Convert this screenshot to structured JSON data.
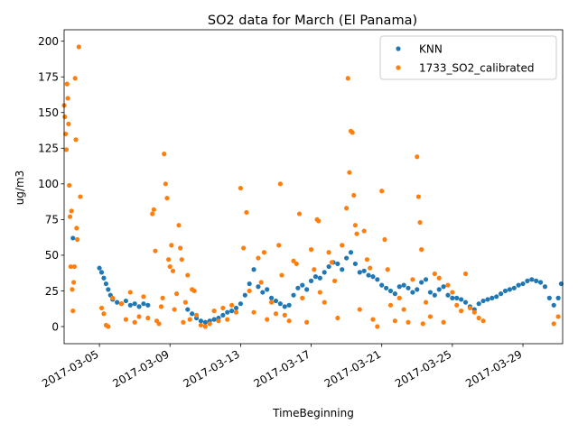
{
  "chart_data": {
    "type": "scatter",
    "title": "SO2 data for March (El Panama)",
    "xlabel": "TimeBeginning",
    "ylabel": "ug/m3",
    "xlim": [
      "2017-03-03 00:00",
      "2017-03-31 06:00"
    ],
    "ylim": [
      -12,
      208
    ],
    "x_ticks": [
      "2017-03-05",
      "2017-03-09",
      "2017-03-13",
      "2017-03-17",
      "2017-03-21",
      "2017-03-25",
      "2017-03-29"
    ],
    "y_ticks": [
      0,
      25,
      50,
      75,
      100,
      125,
      150,
      175,
      200
    ],
    "grid": false,
    "legend_position": "top-right",
    "series": [
      {
        "name": "KNN",
        "color": "#1f77b4",
        "points": [
          [
            "2017-03-03 12:00",
            62
          ],
          [
            "2017-03-05 00:00",
            41
          ],
          [
            "2017-03-05 03:00",
            38
          ],
          [
            "2017-03-05 06:00",
            34
          ],
          [
            "2017-03-05 09:00",
            30
          ],
          [
            "2017-03-05 12:00",
            26
          ],
          [
            "2017-03-05 15:00",
            22
          ],
          [
            "2017-03-05 18:00",
            19
          ],
          [
            "2017-03-06 00:00",
            17
          ],
          [
            "2017-03-06 06:00",
            16
          ],
          [
            "2017-03-06 12:00",
            18
          ],
          [
            "2017-03-06 18:00",
            15
          ],
          [
            "2017-03-07 00:00",
            16
          ],
          [
            "2017-03-07 06:00",
            14
          ],
          [
            "2017-03-07 12:00",
            16
          ],
          [
            "2017-03-07 18:00",
            15
          ],
          [
            "2017-03-10 00:00",
            12
          ],
          [
            "2017-03-10 06:00",
            9
          ],
          [
            "2017-03-10 12:00",
            6
          ],
          [
            "2017-03-10 18:00",
            4
          ],
          [
            "2017-03-11 00:00",
            3
          ],
          [
            "2017-03-11 06:00",
            4
          ],
          [
            "2017-03-11 12:00",
            5
          ],
          [
            "2017-03-11 18:00",
            6
          ],
          [
            "2017-03-12 00:00",
            8
          ],
          [
            "2017-03-12 06:00",
            10
          ],
          [
            "2017-03-12 12:00",
            11
          ],
          [
            "2017-03-12 18:00",
            13
          ],
          [
            "2017-03-13 00:00",
            16
          ],
          [
            "2017-03-13 06:00",
            22
          ],
          [
            "2017-03-13 12:00",
            30
          ],
          [
            "2017-03-13 18:00",
            40
          ],
          [
            "2017-03-14 00:00",
            28
          ],
          [
            "2017-03-14 06:00",
            24
          ],
          [
            "2017-03-14 12:00",
            26
          ],
          [
            "2017-03-14 18:00",
            20
          ],
          [
            "2017-03-15 00:00",
            18
          ],
          [
            "2017-03-15 06:00",
            16
          ],
          [
            "2017-03-15 12:00",
            14
          ],
          [
            "2017-03-15 18:00",
            15
          ],
          [
            "2017-03-16 00:00",
            22
          ],
          [
            "2017-03-16 06:00",
            27
          ],
          [
            "2017-03-16 12:00",
            29
          ],
          [
            "2017-03-16 18:00",
            26
          ],
          [
            "2017-03-17 00:00",
            32
          ],
          [
            "2017-03-17 06:00",
            35
          ],
          [
            "2017-03-17 12:00",
            34
          ],
          [
            "2017-03-17 18:00",
            38
          ],
          [
            "2017-03-18 00:00",
            42
          ],
          [
            "2017-03-18 06:00",
            45
          ],
          [
            "2017-03-18 12:00",
            44
          ],
          [
            "2017-03-18 18:00",
            40
          ],
          [
            "2017-03-19 00:00",
            48
          ],
          [
            "2017-03-19 06:00",
            52
          ],
          [
            "2017-03-19 12:00",
            44
          ],
          [
            "2017-03-19 18:00",
            38
          ],
          [
            "2017-03-20 00:00",
            39
          ],
          [
            "2017-03-20 06:00",
            36
          ],
          [
            "2017-03-20 12:00",
            35
          ],
          [
            "2017-03-20 18:00",
            33
          ],
          [
            "2017-03-21 00:00",
            29
          ],
          [
            "2017-03-21 06:00",
            27
          ],
          [
            "2017-03-21 12:00",
            25
          ],
          [
            "2017-03-21 18:00",
            23
          ],
          [
            "2017-03-22 00:00",
            28
          ],
          [
            "2017-03-22 06:00",
            29
          ],
          [
            "2017-03-22 12:00",
            27
          ],
          [
            "2017-03-22 18:00",
            24
          ],
          [
            "2017-03-23 00:00",
            26
          ],
          [
            "2017-03-23 06:00",
            31
          ],
          [
            "2017-03-23 12:00",
            33
          ],
          [
            "2017-03-23 18:00",
            24
          ],
          [
            "2017-03-24 00:00",
            22
          ],
          [
            "2017-03-24 06:00",
            26
          ],
          [
            "2017-03-24 12:00",
            28
          ],
          [
            "2017-03-24 18:00",
            22
          ],
          [
            "2017-03-25 00:00",
            20
          ],
          [
            "2017-03-25 06:00",
            20
          ],
          [
            "2017-03-25 12:00",
            19
          ],
          [
            "2017-03-25 18:00",
            17
          ],
          [
            "2017-03-26 00:00",
            14
          ],
          [
            "2017-03-26 06:00",
            12
          ],
          [
            "2017-03-26 12:00",
            16
          ],
          [
            "2017-03-26 18:00",
            18
          ],
          [
            "2017-03-27 00:00",
            19
          ],
          [
            "2017-03-27 06:00",
            20
          ],
          [
            "2017-03-27 12:00",
            21
          ],
          [
            "2017-03-27 18:00",
            23
          ],
          [
            "2017-03-28 00:00",
            25
          ],
          [
            "2017-03-28 06:00",
            26
          ],
          [
            "2017-03-28 12:00",
            27
          ],
          [
            "2017-03-28 18:00",
            29
          ],
          [
            "2017-03-29 00:00",
            30
          ],
          [
            "2017-03-29 06:00",
            32
          ],
          [
            "2017-03-29 12:00",
            33
          ],
          [
            "2017-03-29 18:00",
            32
          ],
          [
            "2017-03-30 00:00",
            31
          ],
          [
            "2017-03-30 06:00",
            28
          ],
          [
            "2017-03-30 12:00",
            20
          ],
          [
            "2017-03-30 18:00",
            15
          ],
          [
            "2017-03-31 00:00",
            20
          ],
          [
            "2017-03-31 04:00",
            30
          ]
        ]
      },
      {
        "name": "1733_SO2_calibrated",
        "color": "#ff7f0e",
        "points": [
          [
            "2017-03-03 00:00",
            155
          ],
          [
            "2017-03-03 01:00",
            147
          ],
          [
            "2017-03-03 02:00",
            135
          ],
          [
            "2017-03-03 03:00",
            124
          ],
          [
            "2017-03-03 04:00",
            170
          ],
          [
            "2017-03-03 05:00",
            160
          ],
          [
            "2017-03-03 06:00",
            142
          ],
          [
            "2017-03-03 07:00",
            99
          ],
          [
            "2017-03-03 08:00",
            77
          ],
          [
            "2017-03-03 09:00",
            42
          ],
          [
            "2017-03-03 10:00",
            81
          ],
          [
            "2017-03-03 11:00",
            26
          ],
          [
            "2017-03-03 12:00",
            11
          ],
          [
            "2017-03-03 13:00",
            31
          ],
          [
            "2017-03-03 14:00",
            42
          ],
          [
            "2017-03-03 15:00",
            174
          ],
          [
            "2017-03-03 16:00",
            131
          ],
          [
            "2017-03-03 17:00",
            69
          ],
          [
            "2017-03-03 18:00",
            61
          ],
          [
            "2017-03-03 20:00",
            196
          ],
          [
            "2017-03-03 22:00",
            91
          ],
          [
            "2017-03-05 03:00",
            13
          ],
          [
            "2017-03-05 06:00",
            9
          ],
          [
            "2017-03-05 09:00",
            1
          ],
          [
            "2017-03-05 12:00",
            0
          ],
          [
            "2017-03-05 18:00",
            20
          ],
          [
            "2017-03-06 06:00",
            16
          ],
          [
            "2017-03-06 12:00",
            5
          ],
          [
            "2017-03-06 18:00",
            24
          ],
          [
            "2017-03-07 00:00",
            3
          ],
          [
            "2017-03-07 06:00",
            7
          ],
          [
            "2017-03-07 12:00",
            21
          ],
          [
            "2017-03-07 18:00",
            6
          ],
          [
            "2017-03-08 00:00",
            79
          ],
          [
            "2017-03-08 02:00",
            82
          ],
          [
            "2017-03-08 04:00",
            53
          ],
          [
            "2017-03-08 06:00",
            4
          ],
          [
            "2017-03-08 09:00",
            2
          ],
          [
            "2017-03-08 12:00",
            14
          ],
          [
            "2017-03-08 14:00",
            20
          ],
          [
            "2017-03-08 16:00",
            121
          ],
          [
            "2017-03-08 18:00",
            100
          ],
          [
            "2017-03-08 20:00",
            90
          ],
          [
            "2017-03-08 22:00",
            47
          ],
          [
            "2017-03-09 00:00",
            42
          ],
          [
            "2017-03-09 02:00",
            57
          ],
          [
            "2017-03-09 04:00",
            39
          ],
          [
            "2017-03-09 06:00",
            12
          ],
          [
            "2017-03-09 09:00",
            23
          ],
          [
            "2017-03-09 12:00",
            71
          ],
          [
            "2017-03-09 14:00",
            55
          ],
          [
            "2017-03-09 16:00",
            47
          ],
          [
            "2017-03-09 18:00",
            3
          ],
          [
            "2017-03-09 21:00",
            17
          ],
          [
            "2017-03-10 00:00",
            36
          ],
          [
            "2017-03-10 03:00",
            5
          ],
          [
            "2017-03-10 06:00",
            26
          ],
          [
            "2017-03-10 09:00",
            25
          ],
          [
            "2017-03-10 12:00",
            8
          ],
          [
            "2017-03-10 18:00",
            1
          ],
          [
            "2017-03-11 00:00",
            0
          ],
          [
            "2017-03-11 06:00",
            2
          ],
          [
            "2017-03-11 12:00",
            11
          ],
          [
            "2017-03-11 18:00",
            4
          ],
          [
            "2017-03-12 00:00",
            13
          ],
          [
            "2017-03-12 06:00",
            5
          ],
          [
            "2017-03-12 12:00",
            15
          ],
          [
            "2017-03-12 18:00",
            10
          ],
          [
            "2017-03-13 00:00",
            97
          ],
          [
            "2017-03-13 04:00",
            55
          ],
          [
            "2017-03-13 08:00",
            80
          ],
          [
            "2017-03-13 12:00",
            25
          ],
          [
            "2017-03-13 18:00",
            10
          ],
          [
            "2017-03-14 00:00",
            48
          ],
          [
            "2017-03-14 04:00",
            31
          ],
          [
            "2017-03-14 08:00",
            52
          ],
          [
            "2017-03-14 12:00",
            5
          ],
          [
            "2017-03-14 18:00",
            17
          ],
          [
            "2017-03-15 00:00",
            9
          ],
          [
            "2017-03-15 04:00",
            57
          ],
          [
            "2017-03-15 06:00",
            100
          ],
          [
            "2017-03-15 08:00",
            36
          ],
          [
            "2017-03-15 12:00",
            8
          ],
          [
            "2017-03-15 18:00",
            4
          ],
          [
            "2017-03-16 00:00",
            46
          ],
          [
            "2017-03-16 04:00",
            44
          ],
          [
            "2017-03-16 08:00",
            79
          ],
          [
            "2017-03-16 12:00",
            20
          ],
          [
            "2017-03-16 18:00",
            3
          ],
          [
            "2017-03-17 00:00",
            54
          ],
          [
            "2017-03-17 04:00",
            40
          ],
          [
            "2017-03-17 08:00",
            75
          ],
          [
            "2017-03-17 10:00",
            74
          ],
          [
            "2017-03-17 12:00",
            24
          ],
          [
            "2017-03-17 18:00",
            17
          ],
          [
            "2017-03-18 00:00",
            52
          ],
          [
            "2017-03-18 04:00",
            45
          ],
          [
            "2017-03-18 08:00",
            32
          ],
          [
            "2017-03-18 12:00",
            6
          ],
          [
            "2017-03-18 18:00",
            57
          ],
          [
            "2017-03-19 00:00",
            83
          ],
          [
            "2017-03-19 02:00",
            174
          ],
          [
            "2017-03-19 04:00",
            108
          ],
          [
            "2017-03-19 06:00",
            137
          ],
          [
            "2017-03-19 08:00",
            136
          ],
          [
            "2017-03-19 10:00",
            92
          ],
          [
            "2017-03-19 12:00",
            71
          ],
          [
            "2017-03-19 14:00",
            65
          ],
          [
            "2017-03-19 18:00",
            12
          ],
          [
            "2017-03-20 00:00",
            67
          ],
          [
            "2017-03-20 04:00",
            47
          ],
          [
            "2017-03-20 08:00",
            41
          ],
          [
            "2017-03-20 12:00",
            5
          ],
          [
            "2017-03-20 18:00",
            0
          ],
          [
            "2017-03-21 00:00",
            95
          ],
          [
            "2017-03-21 04:00",
            61
          ],
          [
            "2017-03-21 08:00",
            40
          ],
          [
            "2017-03-21 12:00",
            15
          ],
          [
            "2017-03-21 18:00",
            4
          ],
          [
            "2017-03-22 00:00",
            20
          ],
          [
            "2017-03-22 06:00",
            12
          ],
          [
            "2017-03-22 12:00",
            3
          ],
          [
            "2017-03-22 18:00",
            33
          ],
          [
            "2017-03-23 00:00",
            119
          ],
          [
            "2017-03-23 02:00",
            91
          ],
          [
            "2017-03-23 04:00",
            73
          ],
          [
            "2017-03-23 06:00",
            54
          ],
          [
            "2017-03-23 08:00",
            2
          ],
          [
            "2017-03-23 12:00",
            17
          ],
          [
            "2017-03-23 18:00",
            7
          ],
          [
            "2017-03-24 00:00",
            37
          ],
          [
            "2017-03-24 06:00",
            34
          ],
          [
            "2017-03-24 12:00",
            3
          ],
          [
            "2017-03-24 18:00",
            29
          ],
          [
            "2017-03-25 00:00",
            24
          ],
          [
            "2017-03-25 06:00",
            15
          ],
          [
            "2017-03-25 12:00",
            11
          ],
          [
            "2017-03-25 18:00",
            37
          ],
          [
            "2017-03-26 00:00",
            13
          ],
          [
            "2017-03-26 06:00",
            10
          ],
          [
            "2017-03-26 12:00",
            6
          ],
          [
            "2017-03-26 18:00",
            4
          ],
          [
            "2017-03-30 18:00",
            2
          ],
          [
            "2017-03-31 00:00",
            7
          ]
        ]
      }
    ]
  }
}
